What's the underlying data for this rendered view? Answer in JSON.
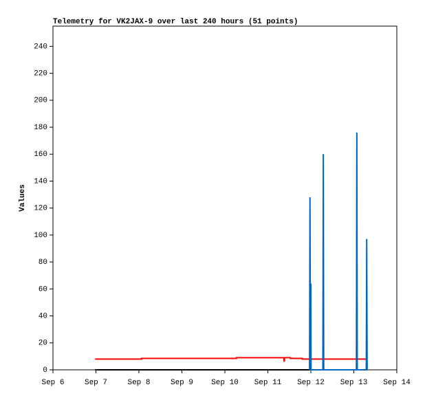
{
  "chart_data": {
    "type": "line",
    "title": "Telemetry for VK2JAX-9 over last 240 hours (51 points)",
    "y_label": "Values",
    "xlim": [
      6,
      14
    ],
    "xticks": [
      {
        "value": 6,
        "label": "Sep 6"
      },
      {
        "value": 7,
        "label": "Sep 7"
      },
      {
        "value": 8,
        "label": "Sep 8"
      },
      {
        "value": 9,
        "label": "Sep 9"
      },
      {
        "value": 10,
        "label": "Sep 10"
      },
      {
        "value": 11,
        "label": "Sep 11"
      },
      {
        "value": 12,
        "label": "Sep 12"
      },
      {
        "value": 13,
        "label": "Sep 13"
      },
      {
        "value": 14,
        "label": "Sep 14"
      }
    ],
    "ylim": [
      0,
      255
    ],
    "yticks": [
      0,
      20,
      40,
      60,
      80,
      100,
      120,
      140,
      160,
      180,
      200,
      220,
      240
    ],
    "series": [
      {
        "color": "#000000",
        "x": [
          6.98,
          13.3
        ],
        "values": [
          0,
          0
        ]
      },
      {
        "color": "#ff0000",
        "x": [
          6.98,
          8.06,
          8.06,
          10.27,
          10.27,
          11.37,
          11.38,
          11.39,
          11.52,
          11.52,
          11.8,
          11.8,
          13.28
        ],
        "values": [
          8,
          8,
          8.5,
          8.5,
          9,
          9,
          6,
          9,
          9,
          8.5,
          8.5,
          8,
          8
        ]
      },
      {
        "color": "#0066bb",
        "x": [
          11.97,
          11.98,
          11.99,
          11.995,
          12.0,
          12.005,
          12.28,
          12.29,
          12.3,
          13.06,
          13.07,
          13.08,
          13.29,
          13.3,
          13.31
        ],
        "values": [
          0,
          128,
          0,
          0,
          64,
          0,
          0,
          160,
          0,
          0,
          176,
          0,
          0,
          97,
          0
        ]
      }
    ]
  }
}
